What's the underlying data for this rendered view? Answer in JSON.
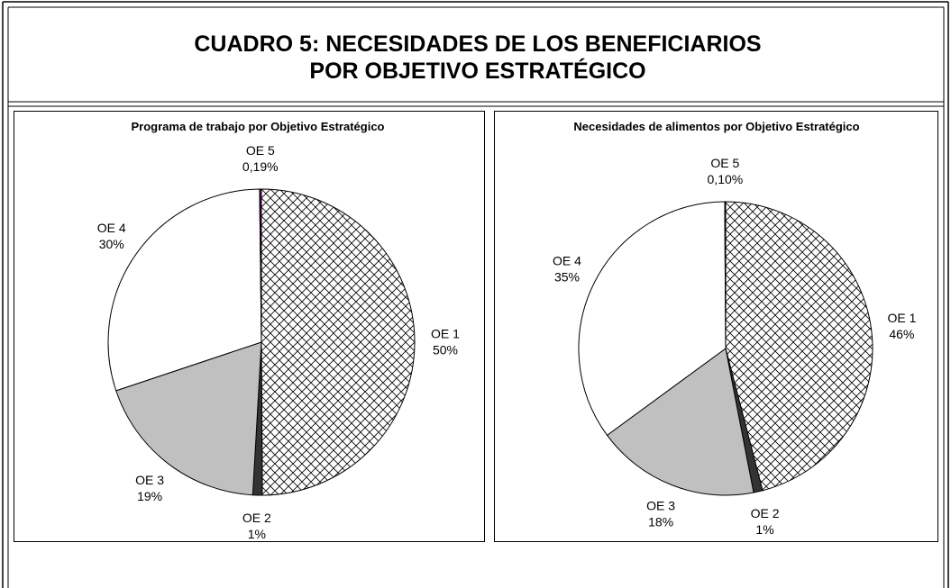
{
  "header": {
    "title": [
      "CUADRO 5: NECESIDADES DE LOS BENEFICIARIOS",
      "POR OBJETIVO ESTRATÉGICO"
    ]
  },
  "chart_data": [
    {
      "type": "pie",
      "title": "Programa de trabajo por Objetivo Estratégico",
      "categories": [
        "OE 1",
        "OE 2",
        "OE 3",
        "OE 4",
        "OE 5"
      ],
      "values": [
        50,
        1,
        19,
        30,
        0.19
      ],
      "value_labels": [
        "50%",
        "1%",
        "19%",
        "30%",
        "0,19%"
      ],
      "colors": [
        "#000000",
        "#333333",
        "#c0c0c0",
        "#ffffff",
        "#660066"
      ],
      "patterns": [
        "crosshatch",
        "solid",
        "solid",
        "solid",
        "solid"
      ]
    },
    {
      "type": "pie",
      "title": "Necesidades de alimentos por Objetivo Estratégico",
      "categories": [
        "OE 1",
        "OE 2",
        "OE 3",
        "OE 4",
        "OE 5"
      ],
      "values": [
        46,
        1,
        18,
        35,
        0.1
      ],
      "value_labels": [
        "46%",
        "1%",
        "18%",
        "35%",
        "0,10%"
      ],
      "colors": [
        "#000000",
        "#333333",
        "#c0c0c0",
        "#ffffff",
        "#660066"
      ],
      "patterns": [
        "crosshatch",
        "solid",
        "solid",
        "solid",
        "solid"
      ]
    }
  ]
}
